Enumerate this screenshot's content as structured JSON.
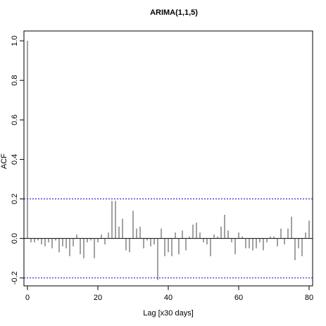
{
  "chart_data": {
    "type": "bar",
    "title": "ARIMA(1,1,5)",
    "xlabel": "Lag [x30 days]",
    "ylabel": "ACF",
    "xlim": [
      -1,
      81
    ],
    "ylim": [
      -0.24,
      1.05
    ],
    "x_ticks": [
      0,
      20,
      40,
      60,
      80
    ],
    "x_tick_labels": [
      "0",
      "20",
      "40",
      "60",
      "80"
    ],
    "y_ticks": [
      -0.2,
      0.0,
      0.2,
      0.4,
      0.6,
      0.8,
      1.0
    ],
    "y_tick_labels": [
      "-0.2",
      "0.0",
      "0.2",
      "0.4",
      "0.6",
      "0.8",
      "1.0"
    ],
    "confidence_bounds": [
      0.2,
      -0.2
    ],
    "lags": [
      0,
      1,
      2,
      3,
      4,
      5,
      6,
      7,
      8,
      9,
      10,
      11,
      12,
      13,
      14,
      15,
      16,
      17,
      18,
      19,
      20,
      21,
      22,
      23,
      24,
      25,
      26,
      27,
      28,
      29,
      30,
      31,
      32,
      33,
      34,
      35,
      36,
      37,
      38,
      39,
      40,
      41,
      42,
      43,
      44,
      45,
      46,
      47,
      48,
      49,
      50,
      51,
      52,
      53,
      54,
      55,
      56,
      57,
      58,
      59,
      60,
      61,
      62,
      63,
      64,
      65,
      66,
      67,
      68,
      69,
      70,
      71,
      72,
      73,
      74,
      75,
      76,
      77,
      78,
      79,
      80
    ],
    "values": [
      1.0,
      -0.02,
      -0.02,
      -0.01,
      -0.03,
      -0.04,
      -0.02,
      -0.05,
      -0.01,
      -0.07,
      -0.04,
      -0.05,
      -0.09,
      -0.04,
      0.02,
      -0.08,
      -0.1,
      -0.02,
      -0.01,
      -0.1,
      -0.02,
      0.02,
      -0.03,
      0.03,
      0.19,
      0.19,
      0.06,
      0.1,
      -0.06,
      -0.07,
      0.14,
      0.05,
      0.06,
      -0.05,
      -0.01,
      -0.04,
      -0.03,
      -0.21,
      0.05,
      -0.09,
      -0.07,
      -0.09,
      0.03,
      -0.08,
      0.04,
      -0.06,
      0.01,
      0.07,
      0.08,
      0.03,
      -0.02,
      -0.03,
      -0.09,
      0.02,
      0.01,
      0.06,
      0.12,
      0.04,
      -0.02,
      -0.08,
      0.03,
      0.01,
      -0.05,
      -0.05,
      -0.06,
      -0.05,
      -0.02,
      -0.06,
      -0.02,
      0.01,
      0.01,
      -0.04,
      0.05,
      -0.03,
      0.05,
      0.11,
      -0.11,
      -0.05,
      -0.09,
      0.03,
      0.09
    ]
  }
}
